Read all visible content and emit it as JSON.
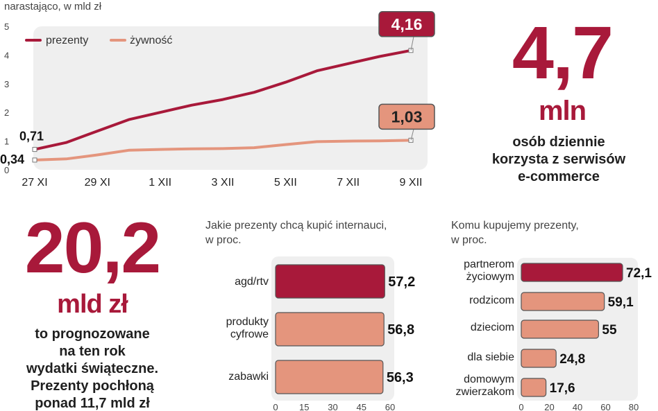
{
  "colors": {
    "accent": "#a8193a",
    "secondary": "#e4957d",
    "panel": "#efefef"
  },
  "chart_data": [
    {
      "type": "line",
      "subtitle": "narastająco, w mld zł",
      "x": [
        "27 XI",
        "28 XI",
        "29 XI",
        "30 XI",
        "1 XII",
        "2 XII",
        "3 XII",
        "4 XII",
        "5 XII",
        "6 XII",
        "7 XII",
        "8 XII",
        "9 XII"
      ],
      "x_ticks": [
        "27 XI",
        "29 XI",
        "1 XII",
        "3 XII",
        "5 XII",
        "7 XII",
        "9 XII"
      ],
      "y_ticks": [
        "0",
        "1",
        "2",
        "3",
        "4",
        "5"
      ],
      "ylim": [
        0,
        5
      ],
      "legend": "top-left",
      "series": [
        {
          "name": "prezenty",
          "color": "#a8193a",
          "values": [
            0.71,
            0.95,
            1.35,
            1.75,
            2.0,
            2.25,
            2.45,
            2.7,
            3.05,
            3.45,
            3.7,
            3.95,
            4.16
          ],
          "start_label": "0,71",
          "end_label": "4,16"
        },
        {
          "name": "żywność",
          "color": "#e4957d",
          "values": [
            0.34,
            0.38,
            0.52,
            0.68,
            0.71,
            0.73,
            0.74,
            0.77,
            0.88,
            0.98,
            1.0,
            1.01,
            1.03
          ],
          "start_label": "0,34",
          "end_label": "1,03"
        }
      ]
    },
    {
      "type": "bar",
      "orientation": "horizontal",
      "title": "Jakie prezenty chcą kupić internauci, w proc.",
      "categories": [
        "agd/rtv",
        "produkty cyfrowe",
        "zabawki"
      ],
      "values": [
        57.2,
        56.8,
        56.3
      ],
      "value_labels": [
        "57,2",
        "56,8",
        "56,3"
      ],
      "xlim": [
        0,
        60
      ],
      "x_ticks": [
        "0",
        "15",
        "30",
        "45",
        "60"
      ]
    },
    {
      "type": "bar",
      "orientation": "horizontal",
      "title": "Komu kupujemy prezenty, w proc.",
      "categories": [
        "partnerom życiowym",
        "rodzicom",
        "dzieciom",
        "dla siebie",
        "domowym zwierzakom"
      ],
      "values": [
        72.1,
        59.1,
        55,
        24.8,
        17.6
      ],
      "value_labels": [
        "72,1",
        "59,1",
        "55",
        "24,8",
        "17,6"
      ],
      "xlim": [
        0,
        80
      ],
      "x_ticks": [
        "0",
        "20",
        "40",
        "60",
        "80"
      ]
    }
  ],
  "stat_users": {
    "value": "4,7",
    "unit": "mln",
    "line1": "osób dziennie",
    "line2": "korzysta z serwisów",
    "line3": "e-commerce"
  },
  "stat_spend": {
    "value": "20,2",
    "unit": "mld zł",
    "line1": "to prognozowane",
    "line2": "na ten rok",
    "line3": "wydatki świąteczne.",
    "line4": "Prezenty pochłoną",
    "line5": "ponad 11,7 mld zł"
  },
  "bar1": {
    "title_line1": "Jakie prezenty chcą kupić internauci,",
    "title_line2": "w proc.",
    "label_a": "agd/rtv",
    "label_b1": "produkty",
    "label_b2": "cyfrowe",
    "label_c": "zabawki"
  },
  "bar2": {
    "title_line1": "Komu kupujemy prezenty,",
    "title_line2": "w proc.",
    "label_a1": "partnerom",
    "label_a2": "życiowym",
    "label_b": "rodzicom",
    "label_c": "dzieciom",
    "label_d": "dla siebie",
    "label_e1": "domowym",
    "label_e2": "zwierzakom"
  }
}
